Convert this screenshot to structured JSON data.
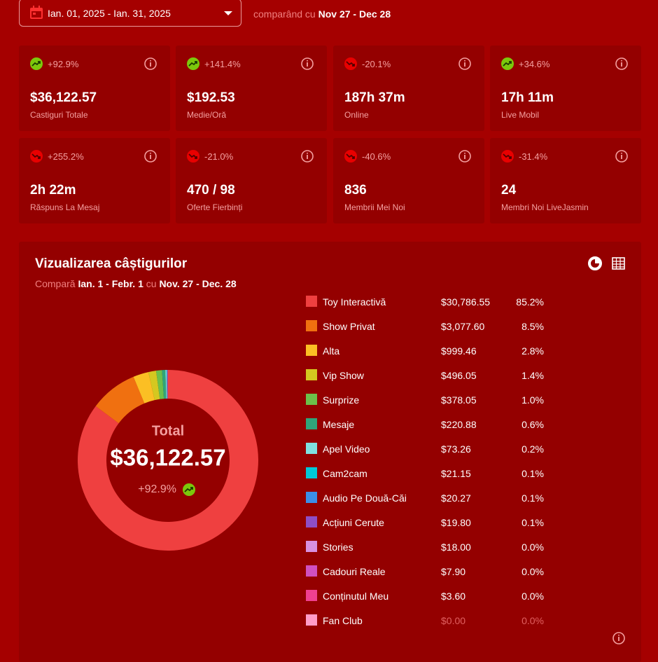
{
  "header": {
    "date_range": "Ian. 01, 2025 - Ian. 31, 2025",
    "compare_prefix": "comparând cu",
    "compare_range": "Nov 27 - Dec 28"
  },
  "stats": [
    {
      "change": "+92.9%",
      "trend": "up",
      "value": "$36,122.57",
      "label": "Castiguri Totale"
    },
    {
      "change": "+141.4%",
      "trend": "up",
      "value": "$192.53",
      "label": "Medie/Oră"
    },
    {
      "change": "-20.1%",
      "trend": "down",
      "value": "187h 37m",
      "label": "Online"
    },
    {
      "change": "+34.6%",
      "trend": "up",
      "value": "17h 11m",
      "label": "Live Mobil"
    },
    {
      "change": "+255.2%",
      "trend": "down",
      "value": "2h 22m",
      "label": "Răspuns La Mesaj"
    },
    {
      "change": "-21.0%",
      "trend": "down",
      "value": "470 / 98",
      "label": "Oferte Fierbinți"
    },
    {
      "change": "-40.6%",
      "trend": "down",
      "value": "836",
      "label": "Membrii Mei Noi"
    },
    {
      "change": "-31.4%",
      "trend": "down",
      "value": "24",
      "label": "Membri Noi LiveJasmin"
    }
  ],
  "earnings": {
    "title": "Vizualizarea câștigurilor",
    "compare_prefix": "Compară",
    "period": "Ian. 1 - Febr. 1",
    "compare_word": "cu",
    "compare_period": "Nov. 27 - Dec. 28"
  },
  "chart_data": {
    "type": "donut",
    "total_label": "Total",
    "total": "$36,122.57",
    "total_change": "+92.9%",
    "total_trend": "up",
    "categories": [
      "Toy Interactivă",
      "Show Privat",
      "Alta",
      "Vip Show",
      "Surprize",
      "Mesaje",
      "Apel Video",
      "Cam2cam",
      "Audio Pe Două-Căi",
      "Acțiuni Cerute",
      "Stories",
      "Cadouri Reale",
      "Conținutul Meu",
      "Fan Club"
    ],
    "values": [
      30786.55,
      3077.6,
      999.46,
      496.05,
      378.05,
      220.88,
      73.26,
      21.15,
      20.27,
      19.8,
      18.0,
      7.9,
      3.6,
      0
    ],
    "value_labels": [
      "$30,786.55",
      "$3,077.60",
      "$999.46",
      "$496.05",
      "$378.05",
      "$220.88",
      "$73.26",
      "$21.15",
      "$20.27",
      "$19.80",
      "$18.00",
      "$7.90",
      "$3.60",
      "$0.00"
    ],
    "shares": [
      85.2,
      8.5,
      2.8,
      1.4,
      1.0,
      0.6,
      0.2,
      0.1,
      0.1,
      0.1,
      0.0,
      0.0,
      0.0,
      0.0
    ],
    "share_labels": [
      "85.2%",
      "8.5%",
      "2.8%",
      "1.4%",
      "1.0%",
      "0.6%",
      "0.2%",
      "0.1%",
      "0.1%",
      "0.1%",
      "0.0%",
      "0.0%",
      "0.0%",
      "0.0%"
    ],
    "colors": [
      "#ef4040",
      "#f07010",
      "#fbbf24",
      "#d4c820",
      "#6cc04a",
      "#2fa57a",
      "#80e0e0",
      "#00c8d8",
      "#3b8fe8",
      "#8e4ec6",
      "#d890e0",
      "#d050c0",
      "#f04090",
      "#ff9cc8"
    ]
  }
}
